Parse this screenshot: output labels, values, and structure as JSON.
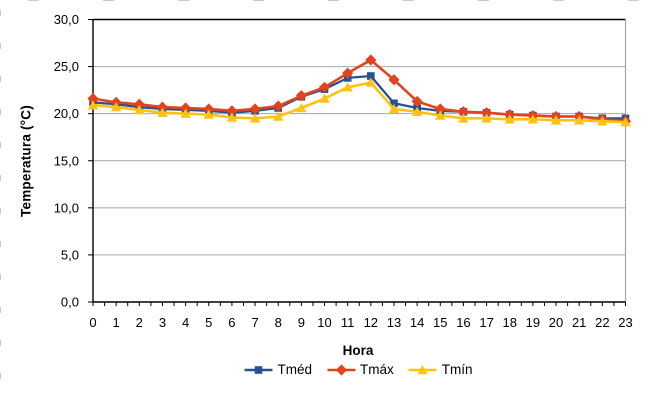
{
  "chart_data": {
    "type": "line",
    "title": "",
    "xlabel": "Hora",
    "ylabel": "Temperatura (°C)",
    "x": [
      0,
      1,
      2,
      3,
      4,
      5,
      6,
      7,
      8,
      9,
      10,
      11,
      12,
      13,
      14,
      15,
      16,
      17,
      18,
      19,
      20,
      21,
      22,
      23
    ],
    "x_tick_labels": [
      "0",
      "1",
      "2",
      "3",
      "4",
      "5",
      "6",
      "7",
      "8",
      "9",
      "10",
      "11",
      "12",
      "13",
      "14",
      "15",
      "16",
      "17",
      "18",
      "19",
      "20",
      "21",
      "22",
      "23"
    ],
    "y_tick_labels": [
      "0,0",
      "5,0",
      "10,0",
      "15,0",
      "20,0",
      "25,0",
      "30,0"
    ],
    "ylim": [
      0,
      30
    ],
    "y_tick_step": 5,
    "grid": "horizontal",
    "legend_position": "bottom",
    "axis_color": "#000000",
    "gridline_color": "#a6a6a6",
    "plot_border_right_color": "#a6a6a6",
    "series": [
      {
        "name": "Tméd",
        "marker": "square",
        "color": "#24538f",
        "values": [
          21.2,
          21.0,
          20.7,
          20.5,
          20.4,
          20.3,
          20.1,
          20.3,
          20.6,
          21.8,
          22.6,
          23.8,
          24.0,
          21.1,
          20.6,
          20.3,
          20.2,
          20.1,
          19.9,
          19.8,
          19.7,
          19.7,
          19.5,
          19.5
        ]
      },
      {
        "name": "Tmáx",
        "marker": "diamond",
        "color": "#e2431e",
        "values": [
          21.6,
          21.2,
          21.0,
          20.7,
          20.6,
          20.5,
          20.3,
          20.5,
          20.8,
          21.9,
          22.8,
          24.3,
          25.7,
          23.6,
          21.3,
          20.5,
          20.2,
          20.1,
          19.9,
          19.8,
          19.7,
          19.7,
          19.4,
          19.2
        ]
      },
      {
        "name": "Tmín",
        "marker": "triangle",
        "color": "#ffc213",
        "values": [
          20.9,
          20.7,
          20.4,
          20.1,
          20.0,
          19.9,
          19.6,
          19.5,
          19.7,
          20.6,
          21.6,
          22.8,
          23.3,
          20.5,
          20.2,
          19.8,
          19.5,
          19.5,
          19.4,
          19.4,
          19.3,
          19.3,
          19.2,
          19.1
        ]
      }
    ]
  }
}
